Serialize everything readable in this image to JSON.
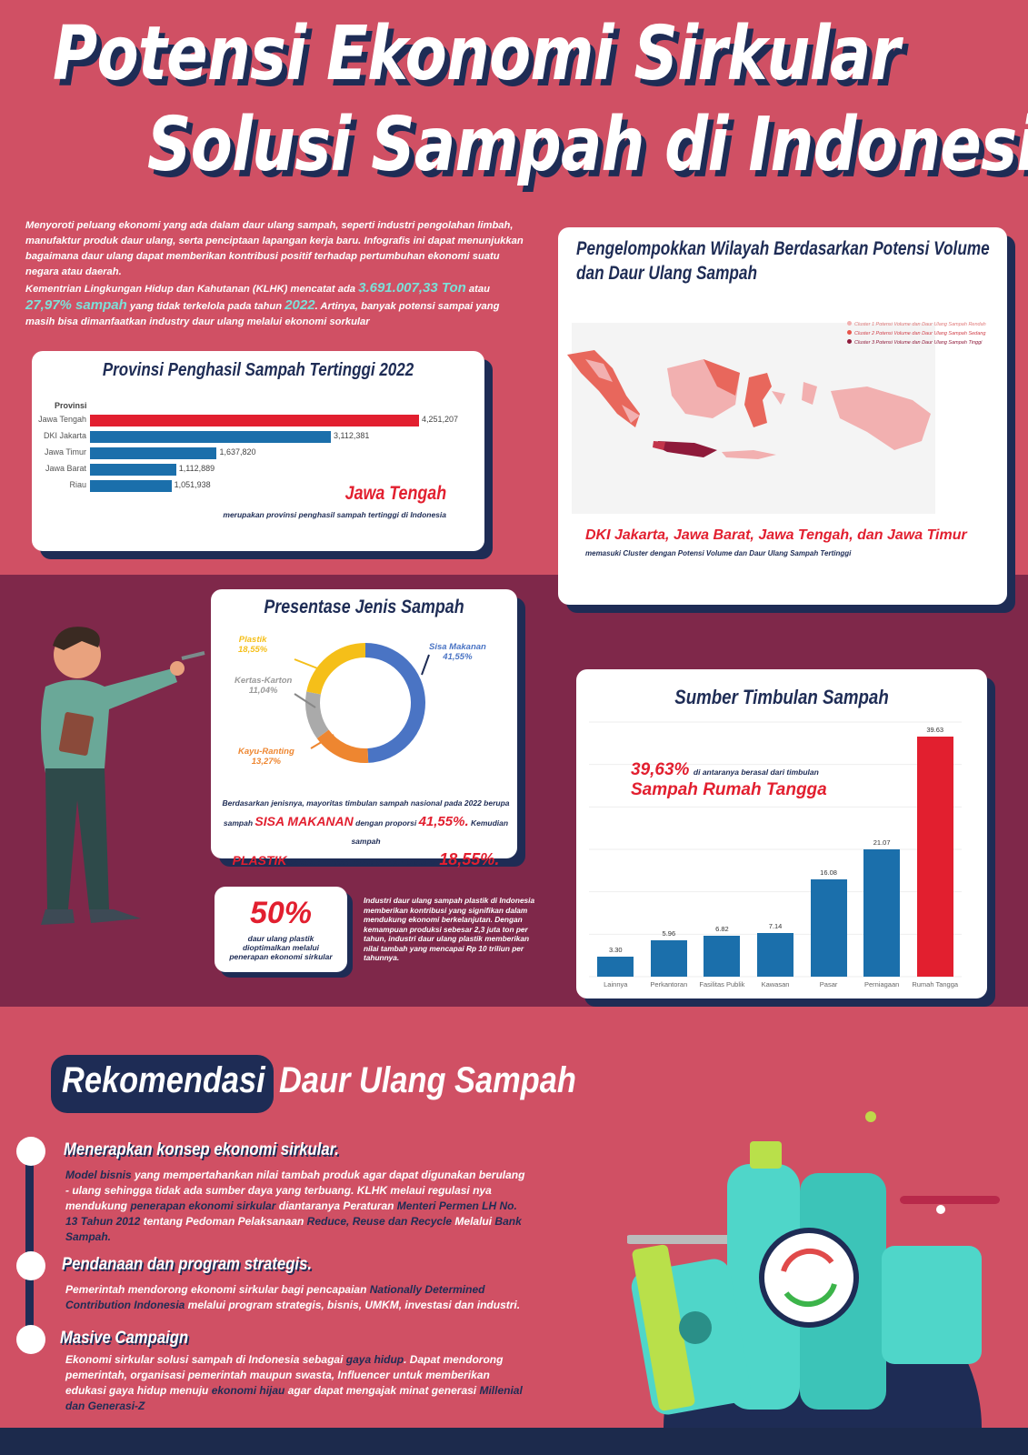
{
  "title": {
    "line1": "Potensi Ekonomi Sirkular",
    "line2": "Solusi Sampah di Indonesia"
  },
  "intro": {
    "p1": "Menyoroti peluang ekonomi yang ada dalam daur ulang sampah, seperti industri pengolahan limbah, manufaktur produk daur ulang, serta penciptaan lapangan kerja baru. Infografis ini dapat menunjukkan bagaimana daur ulang dapat memberikan kontribusi positif terhadap pertumbuhan ekonomi suatu negara atau daerah.",
    "p2a": "Kementrian Lingkungan Hidup dan Kahutanan (KLHK) mencatat ada",
    "tons": "3.691.007,33 Ton",
    "p2b": "atau",
    "pct": "27,97% sampah",
    "p2c": "yang tidak terkelola pada tahun",
    "year": "2022",
    "p2d": ". Artinya, banyak potensi  sampai yang masih bisa dimanfaatkan industry daur ulang melalui ekonomi sorkular"
  },
  "province_card": {
    "title": "Provinsi Penghasil Sampah Tertinggi 2022",
    "axis_header": "Provinsi",
    "highlight": "Jawa Tengah",
    "note": "merupakan provinsi penghasil sampah tertinggi di Indonesia"
  },
  "chart_data": [
    {
      "type": "bar",
      "orientation": "horizontal",
      "title": "Provinsi Penghasil Sampah Tertinggi 2022",
      "categories": [
        "Jawa Tengah",
        "DKI Jakarta",
        "Jawa Timur",
        "Jawa Barat",
        "Riau"
      ],
      "values": [
        4251207,
        3112381,
        1637820,
        1112889,
        1051938
      ],
      "value_labels": [
        "4,251,207",
        "3,112,381",
        "1,637,820",
        "1,112,889",
        "1,051,938"
      ],
      "colors": [
        "#e21f2f",
        "#1b6fab",
        "#1b6fab",
        "#1b6fab",
        "#1b6fab"
      ],
      "ylabel": "Provinsi",
      "grid": false
    },
    {
      "type": "pie",
      "title": "Presentase Jenis Sampah",
      "categories": [
        "Sisa Makanan",
        "Kayu-Ranting",
        "Kertas-Karton",
        "Plastik"
      ],
      "values": [
        41.55,
        13.27,
        11.04,
        18.55
      ],
      "value_labels": [
        "41,55%",
        "13,27%",
        "11,04%",
        "18,55%"
      ],
      "colors": [
        "#4a74c4",
        "#ee8630",
        "#aaaaaa",
        "#f5bf19"
      ]
    },
    {
      "type": "bar",
      "title": "Sumber Timbulan Sampah",
      "categories": [
        "Lainnya",
        "Perkantoran",
        "Fasilitas Publik",
        "Kawasan",
        "Pasar",
        "Perniagaan",
        "Rumah Tangga"
      ],
      "values": [
        3.3,
        5.96,
        6.82,
        7.14,
        16.08,
        21.07,
        39.63
      ],
      "value_labels": [
        "3.30",
        "5.96",
        "6.82",
        "7.14",
        "16.08",
        "21.07",
        "39.63"
      ],
      "colors": [
        "#1b6fab",
        "#1b6fab",
        "#1b6fab",
        "#1b6fab",
        "#1b6fab",
        "#1b6fab",
        "#e21f2f"
      ],
      "ylim": [
        0,
        42
      ],
      "grid": true
    }
  ],
  "map_card": {
    "title": "Pengelompokkan Wilayah Berdasarkan Potensi Volume dan Daur Ulang Sampah",
    "legend": [
      {
        "label": "Cluster 1 Potensi Volume dan Daur Ulang Sampah Rendah",
        "color": "#f2b0b0"
      },
      {
        "label": "Cluster 2 Potensi Volume dan Daur Ulang Sampah Sedang",
        "color": "#e8544a"
      },
      {
        "label": "Cluster 3 Potensi Volume dan Daur Ulang Sampah Tinggi",
        "color": "#8e1a3a"
      }
    ],
    "highlight": "DKI Jakarta, Jawa Barat, Jawa Tengah, dan Jawa Timur",
    "note": "memasuki Cluster dengan Potensi Volume dan Daur Ulang Sampah Tertinggi"
  },
  "donut_card": {
    "title": "Presentase Jenis Sampah",
    "labels": {
      "plastik": "Plastik",
      "plastik_pct": "18,55%",
      "sisa": "Sisa Makanan",
      "sisa_pct": "41,55%",
      "kertas": "Kertas-Karton",
      "kertas_pct": "11,04%",
      "kayu": "Kayu-Ranting",
      "kayu_pct": "13,27%"
    },
    "desc1": "Berdasarkan jenisnya, mayoritas timbulan sampah nasional pada 2022 berupa",
    "desc2a": "sampah",
    "sisa_caps": "SISA MAKANAN",
    "desc2b": "dengan proporsi",
    "sisa_pct": "41,55%.",
    "desc2c": "Kemudian sampah",
    "plastik_caps": "PLASTIK",
    "desc3": "berada di urutan kedua dengan proporsi",
    "plastik_pct": "18,55%."
  },
  "stat_card": {
    "value": "50%",
    "caption": "daur ulang plastik dioptimalkan melalui  penerapan ekonomi sirkular",
    "side_text": "Industri daur ulang sampah plastik di Indonesia memberikan kontribusi yang signifikan dalam mendukung ekonomi berkelanjutan. Dengan kemampuan produksi sebesar 2,3 juta ton per tahun, industri daur ulang plastik memberikan nilai tambah yang mencapai Rp 10 triliun per tahunnya."
  },
  "source_card": {
    "title": "Sumber Timbulan Sampah",
    "pct": "39,63%",
    "text": "di antaranya berasal dari timbulan",
    "highlight": "Sampah Rumah Tangga"
  },
  "reco": {
    "title_a": "Rekomendasi",
    "title_b": "Daur Ulang Sampah",
    "steps": [
      {
        "heading": "Menerapkan konsep ekonomi sirkular."
      },
      {
        "heading": "Pendanaan dan program strategis."
      },
      {
        "heading": "Masive Campaign"
      }
    ],
    "s1": {
      "a": "Model bisnis",
      "b": " yang mempertahankan nilai tambah produk agar dapat digunakan berulang - ulang sehingga tidak ada sumber daya yang terbuang. KLHK melaui regulasi nya mendukung ",
      "c": "penerapan ekonomi sirkular",
      "d": " diantaranya Peraturan ",
      "e": "Menteri Permen LH No. 13 Tahun 2012",
      "f": " tentang Pedoman Pelaksanaan ",
      "g": "Reduce, Reuse dan Recycle",
      "h": " Melalui ",
      "i": "Bank Sampah."
    },
    "s2": {
      "a": "Pemerintah mendorong ekonomi sirkular bagi pencapaian ",
      "b": "Nationally Determined Contribution Indonesia",
      "c": " melalui program strategis, bisnis, UMKM, investasi dan industri."
    },
    "s3": {
      "a": "Ekonomi sirkular solusi sampah di Indonesia sebagai ",
      "b": "gaya hidup",
      "c": ". Dapat mendorong pemerintah, organisasi pemerintah maupun swasta, Influencer untuk memberikan edukasi gaya hidup menuju ",
      "d": "ekonomi hijau",
      "e": " agar dapat mengajak minat generasi ",
      "f": "Millenial dan Generasi-Z"
    }
  },
  "colors": {
    "primary_bg": "#d05064",
    "mid_bg": "#7f284a",
    "navy": "#1e2c55",
    "accent_red": "#e21f2f",
    "bar_blue": "#1b6fab",
    "teal": "#4fd6c9"
  }
}
